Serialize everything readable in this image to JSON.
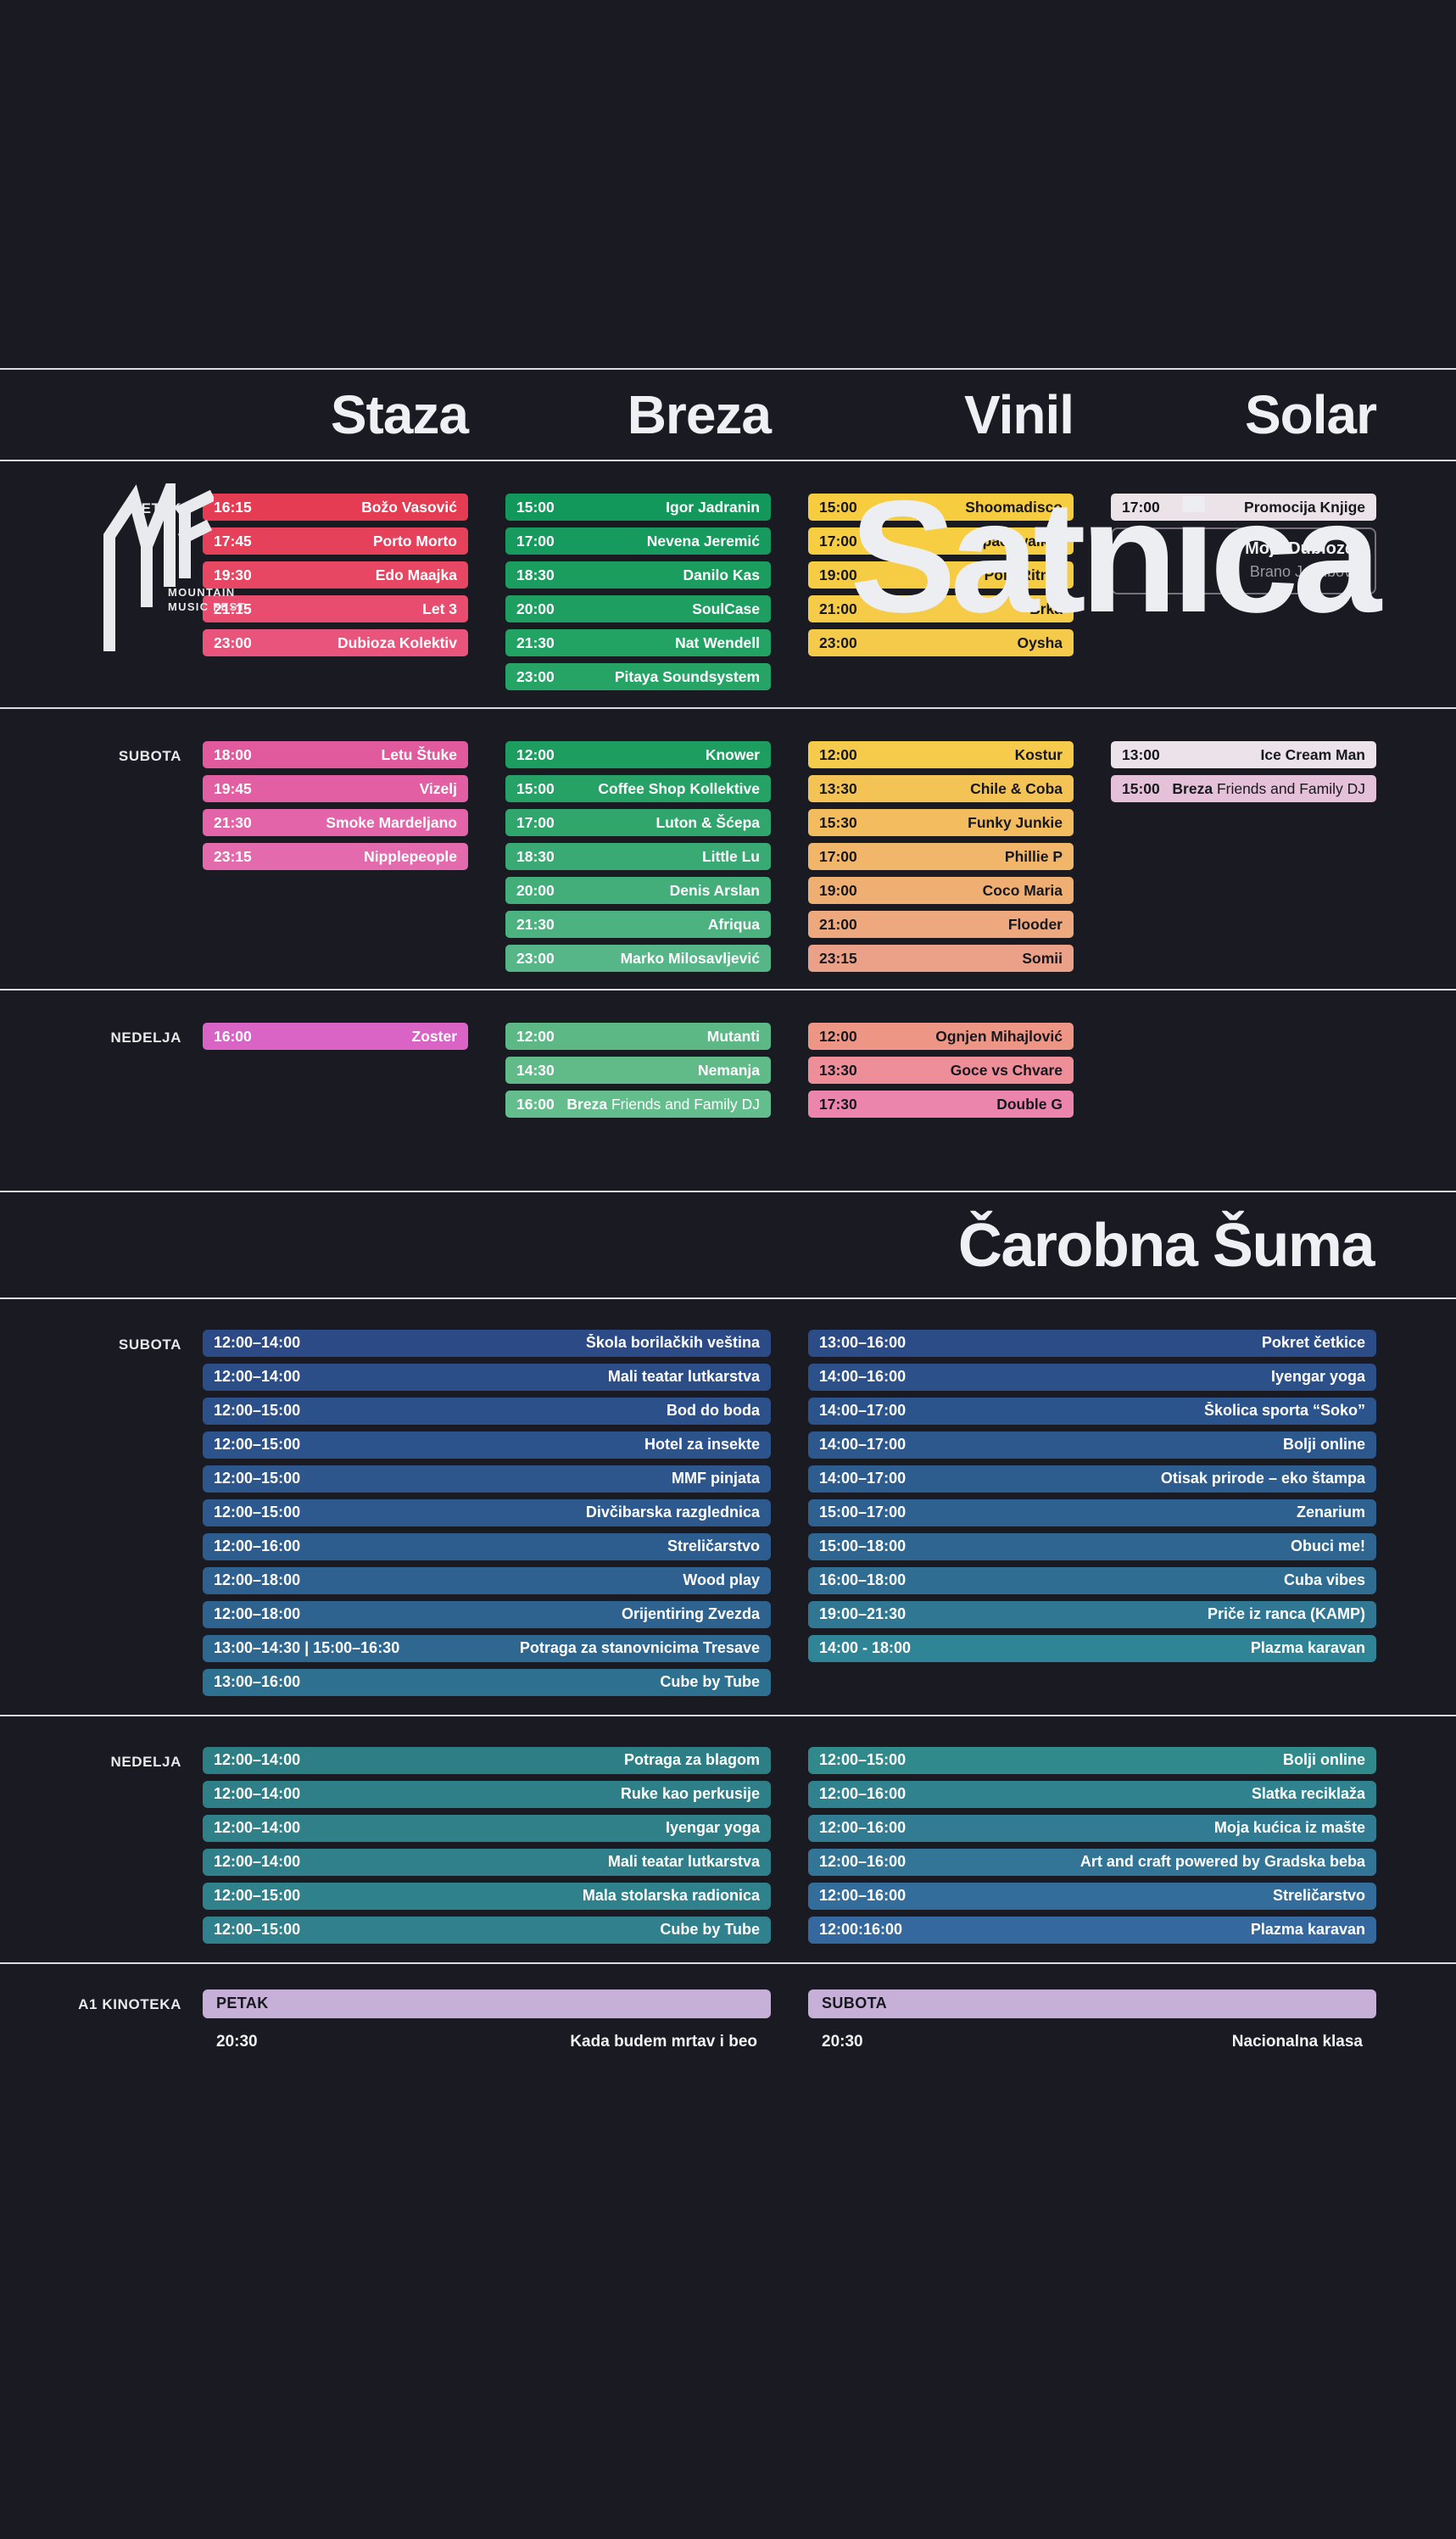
{
  "title": "Satnica",
  "logo": {
    "tagline_line1": "MOUNTAIN",
    "tagline_line2": "MUSIC FEST"
  },
  "colors": {
    "background": "#1a1b22",
    "divider": "#dcdde2",
    "heading_text": "#eef0f3",
    "bar_text_light": "#ffffff",
    "bar_text_dark": "#17181e",
    "cinema_bar": "#c6b0d8"
  },
  "stage_headers": [
    "Staza",
    "Breza",
    "Vinil",
    "Solar"
  ],
  "music_sections": [
    {
      "day": "PETAK",
      "columns": [
        {
          "stage": "Staza",
          "events": [
            {
              "time": "16:15",
              "name": "Božo Vasović",
              "color": "#e63c53"
            },
            {
              "time": "17:45",
              "name": "Porto Morto",
              "color": "#e6415a"
            },
            {
              "time": "19:30",
              "name": "Edo Maajka",
              "color": "#e74763"
            },
            {
              "time": "21:15",
              "name": "Let 3",
              "color": "#e84d70"
            },
            {
              "time": "23:00",
              "name": "Dubioza Kolektiv",
              "color": "#e9547c"
            }
          ]
        },
        {
          "stage": "Breza",
          "events": [
            {
              "time": "15:00",
              "name": "Igor Jadranin",
              "color": "#12985b"
            },
            {
              "time": "17:00",
              "name": "Nevena Jeremić",
              "color": "#169a5d"
            },
            {
              "time": "18:30",
              "name": "Danilo Kas",
              "color": "#1a9d5f"
            },
            {
              "time": "20:00",
              "name": "SoulCase",
              "color": "#1e9f61"
            },
            {
              "time": "21:30",
              "name": "Nat Wendell",
              "color": "#22a263"
            },
            {
              "time": "23:00",
              "name": "Pitaya Soundsystem",
              "color": "#26a466"
            }
          ]
        },
        {
          "stage": "Vinil",
          "events": [
            {
              "time": "15:00",
              "name": "Shoomadisco",
              "color": "#f7cd3f",
              "dark": true
            },
            {
              "time": "17:00",
              "name": "Spacewalker",
              "color": "#f7cd42",
              "dark": true
            },
            {
              "time": "19:00",
              "name": "Poly-Ritmo",
              "color": "#f6cc45",
              "dark": true
            },
            {
              "time": "21:00",
              "name": "Brka",
              "color": "#f6cb48",
              "dark": true
            },
            {
              "time": "23:00",
              "name": "Oysha",
              "color": "#f5ca4b",
              "dark": true
            }
          ]
        },
        {
          "stage": "Solar",
          "events": [
            {
              "time": "17:00",
              "name": "Promocija Knjige",
              "color": "#ebe3e8",
              "dark": true
            }
          ],
          "info_box": {
            "title": "“Moje Dubioze”",
            "subtitle": "Brano Jakubović"
          }
        }
      ]
    },
    {
      "day": "SUBOTA",
      "columns": [
        {
          "stage": "Staza",
          "events": [
            {
              "time": "18:00",
              "name": "Letu Štuke",
              "color": "#e15a9d"
            },
            {
              "time": "19:45",
              "name": "Vizelj",
              "color": "#e25fa3"
            },
            {
              "time": "21:30",
              "name": "Smoke Mardeljano",
              "color": "#e364a8"
            },
            {
              "time": "23:15",
              "name": "Nipplepeople",
              "color": "#e46aae"
            }
          ]
        },
        {
          "stage": "Breza",
          "events": [
            {
              "time": "12:00",
              "name": "Knower",
              "color": "#1d9e60"
            },
            {
              "time": "15:00",
              "name": "Coffee Shop Kollektive",
              "color": "#26a266"
            },
            {
              "time": "17:00",
              "name": "Luton & Šćepa",
              "color": "#30a66d"
            },
            {
              "time": "18:30",
              "name": "Little Lu",
              "color": "#39aa73"
            },
            {
              "time": "20:00",
              "name": "Denis Arslan",
              "color": "#43ae7a"
            },
            {
              "time": "21:30",
              "name": "Afriqua",
              "color": "#4cb280"
            },
            {
              "time": "23:00",
              "name": "Marko Milosavljević",
              "color": "#56b687"
            }
          ]
        },
        {
          "stage": "Vinil",
          "events": [
            {
              "time": "12:00",
              "name": "Kostur",
              "color": "#f6ca4a",
              "dark": true
            },
            {
              "time": "13:30",
              "name": "Chile & Coba",
              "color": "#f4c355",
              "dark": true
            },
            {
              "time": "15:30",
              "name": "Funky Junkie",
              "color": "#f3bd5f",
              "dark": true
            },
            {
              "time": "17:00",
              "name": "Phillie P",
              "color": "#f1b669",
              "dark": true
            },
            {
              "time": "19:00",
              "name": "Coco Maria",
              "color": "#efaf73",
              "dark": true
            },
            {
              "time": "21:00",
              "name": "Flooder",
              "color": "#eda87d",
              "dark": true
            },
            {
              "time": "23:15",
              "name": "Somii",
              "color": "#eba187",
              "dark": true
            }
          ]
        },
        {
          "stage": "Solar",
          "events": [
            {
              "time": "13:00",
              "name": "Ice Cream Man",
              "color": "#ebe3e9",
              "dark": true
            },
            {
              "time": "15:00",
              "name_bold": "Breza",
              "name": "Friends and Family DJ",
              "color": "#e4c1d9",
              "dark": true
            }
          ]
        }
      ]
    },
    {
      "day": "NEDELJA",
      "columns": [
        {
          "stage": "Staza",
          "events": [
            {
              "time": "16:00",
              "name": "Zoster",
              "color": "#d964c6"
            }
          ]
        },
        {
          "stage": "Breza",
          "events": [
            {
              "time": "12:00",
              "name": "Mutanti",
              "color": "#5cb985"
            },
            {
              "time": "14:30",
              "name": "Nemanja",
              "color": "#60bb88"
            },
            {
              "time": "16:00",
              "name_bold": "Breza",
              "name": "Friends and Family DJ",
              "color": "#64bd8c"
            }
          ]
        },
        {
          "stage": "Vinil",
          "events": [
            {
              "time": "12:00",
              "name": "Ognjen Mihajlović",
              "color": "#ee9685",
              "dark": true
            },
            {
              "time": "13:30",
              "name": "Goce vs Chvare",
              "color": "#ed8e98",
              "dark": true
            },
            {
              "time": "17:30",
              "name": "Double G",
              "color": "#ec85ab",
              "dark": true
            }
          ]
        },
        {
          "stage": "Solar",
          "events": []
        }
      ]
    }
  ],
  "forest": {
    "title": "Čarobna Šuma",
    "sections": [
      {
        "day": "SUBOTA",
        "columns": [
          {
            "events": [
              {
                "time": "12:00–14:00",
                "name": "Škola borilačkih veština",
                "color": "#2b4a86"
              },
              {
                "time": "12:00–14:00",
                "name": "Mali teatar lutkarstva",
                "color": "#2b4d88"
              },
              {
                "time": "12:00–15:00",
                "name": "Bod do boda",
                "color": "#2c508a"
              },
              {
                "time": "12:00–15:00",
                "name": "Hotel za insekte",
                "color": "#2c538b"
              },
              {
                "time": "12:00–15:00",
                "name": "MMF pinjata",
                "color": "#2d568d"
              },
              {
                "time": "12:00–15:00",
                "name": "Divčibarska razglednica",
                "color": "#2d598e"
              },
              {
                "time": "12:00–16:00",
                "name": "Streličarstvo",
                "color": "#2d5d8f"
              },
              {
                "time": "12:00–18:00",
                "name": "Wood play",
                "color": "#2e6090"
              },
              {
                "time": "12:00–18:00",
                "name": "Orijentiring Zvezda",
                "color": "#2e6390"
              },
              {
                "time": "13:00–14:30 | 15:00–16:30",
                "name": "Potraga za stanovnicima Tresave",
                "color": "#2e6790"
              },
              {
                "time": "13:00–16:00",
                "name": "Cube by Tube",
                "color": "#2e7090"
              }
            ]
          },
          {
            "events": [
              {
                "time": "13:00–16:00",
                "name": "Pokret četkice",
                "color": "#2b4c87"
              },
              {
                "time": "14:00–16:00",
                "name": "Iyengar yoga",
                "color": "#2c508a"
              },
              {
                "time": "14:00–17:00",
                "name": "Školica sporta “Soko”",
                "color": "#2c548c"
              },
              {
                "time": "14:00–17:00",
                "name": "Bolji online",
                "color": "#2d588e"
              },
              {
                "time": "14:00–17:00",
                "name": "Otisak prirode – eko štampa",
                "color": "#2d5c8f"
              },
              {
                "time": "15:00–17:00",
                "name": "Zenarium",
                "color": "#2e6190"
              },
              {
                "time": "15:00–18:00",
                "name": "Obuci me!",
                "color": "#2f6691"
              },
              {
                "time": "16:00–18:00",
                "name": "Cuba vibes",
                "color": "#2f6e92"
              },
              {
                "time": "19:00–21:30",
                "name": "Priče iz ranca (KAMP)",
                "color": "#2f7793"
              },
              {
                "time": "14:00 - 18:00",
                "name": "Plazma karavan",
                "color": "#2f8495"
              }
            ]
          }
        ]
      },
      {
        "day": "NEDELJA",
        "columns": [
          {
            "events": [
              {
                "time": "12:00–14:00",
                "name": "Potraga za blagom",
                "color": "#2e7f85"
              },
              {
                "time": "12:00–14:00",
                "name": "Ruke kao perkusije",
                "color": "#2e7f87"
              },
              {
                "time": "12:00–14:00",
                "name": "Iyengar yoga",
                "color": "#2f8088"
              },
              {
                "time": "12:00–14:00",
                "name": "Mali teatar lutkarstva",
                "color": "#2f808a"
              },
              {
                "time": "12:00–15:00",
                "name": "Mala stolarska radionica",
                "color": "#2f818b"
              },
              {
                "time": "12:00–15:00",
                "name": "Cube by Tube",
                "color": "#30818d"
              }
            ]
          },
          {
            "events": [
              {
                "time": "12:00–15:00",
                "name": "Bolji online",
                "color": "#30898a"
              },
              {
                "time": "12:00–16:00",
                "name": "Slatka reciklaža",
                "color": "#30838e"
              },
              {
                "time": "12:00–16:00",
                "name": "Moja kućica iz mašte",
                "color": "#317c93"
              },
              {
                "time": "12:00–16:00",
                "name": "Art and craft powered by Gradska beba",
                "color": "#327597"
              },
              {
                "time": "12:00–16:00",
                "name": "Streličarstvo",
                "color": "#336d9b"
              },
              {
                "time": "12:00:16:00",
                "name": "Plazma karavan",
                "color": "#34689e"
              }
            ]
          }
        ]
      }
    ]
  },
  "cinema": {
    "label": "A1 KINOTEKA",
    "bar_color": "#c6b0d8",
    "columns": [
      {
        "header": "PETAK",
        "time": "20:30",
        "name": "Kada budem mrtav i beo"
      },
      {
        "header": "SUBOTA",
        "time": "20:30",
        "name": "Nacionalna klasa"
      }
    ]
  }
}
